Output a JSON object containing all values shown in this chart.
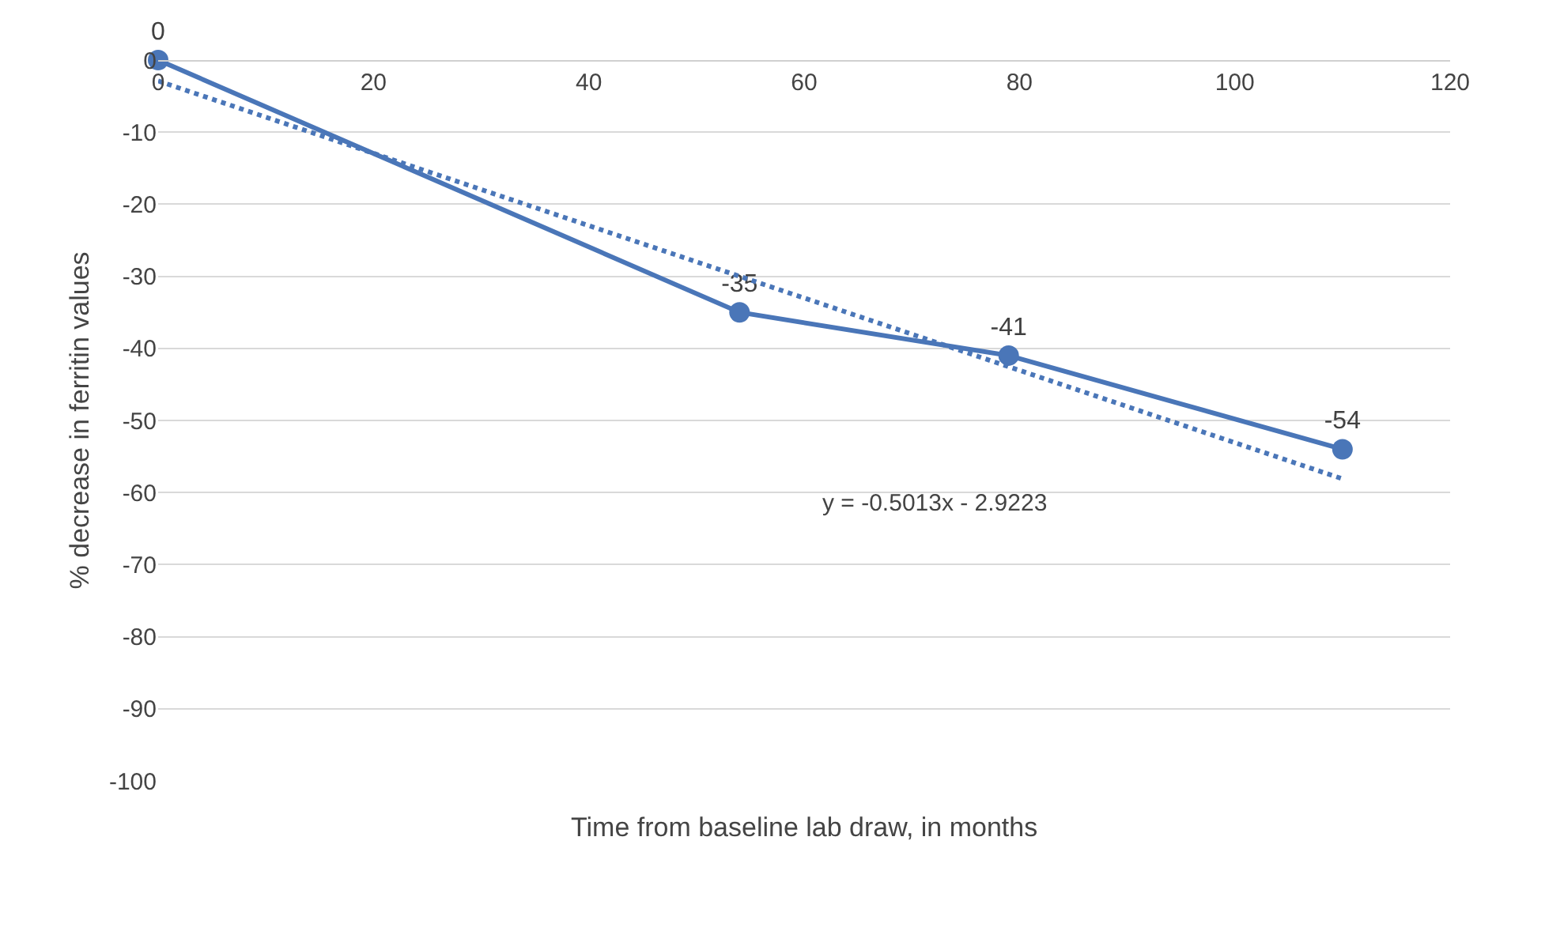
{
  "chart_data": {
    "type": "line",
    "xlabel": "Time from baseline lab draw, in months",
    "ylabel": "% decrease in ferritin values",
    "x": [
      0,
      54,
      79,
      110
    ],
    "series": [
      {
        "color": "#4a76b8",
        "values": [
          0,
          -35,
          -41,
          -54
        ],
        "marker": "circle",
        "line_style": "solid",
        "data_labels": true
      },
      {
        "type": "line",
        "color": "#4a76b8",
        "x": [
          0,
          110
        ],
        "values": [
          -2.9,
          -58.1
        ],
        "marker": "none",
        "line_style": "dotted"
      }
    ],
    "annotations": [
      "y = -0.5013x - 2.9223"
    ],
    "xlim": [
      0,
      120
    ],
    "xticks": [
      0,
      20,
      40,
      60,
      80,
      100,
      120
    ],
    "ylim": [
      -100,
      0
    ],
    "yticks": [
      0,
      -10,
      -20,
      -30,
      -40,
      -50,
      -60,
      -70,
      -80,
      -90,
      -100
    ],
    "grid": "y",
    "legend": false
  }
}
